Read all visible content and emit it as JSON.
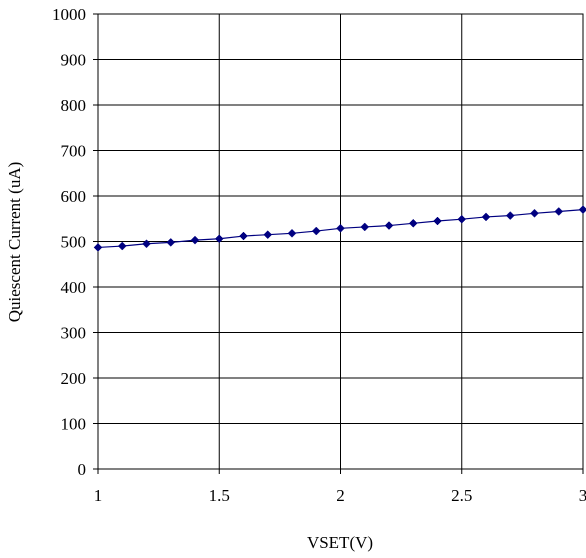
{
  "chart_data": {
    "type": "line",
    "title": "",
    "xlabel": "VSET(V)",
    "ylabel": "Quiescent Current (uA)",
    "xlim": [
      1,
      3
    ],
    "ylim": [
      0,
      1000
    ],
    "x_ticks": [
      "1",
      "1.5",
      "2",
      "2.5",
      "3"
    ],
    "y_ticks": [
      "0",
      "100",
      "200",
      "300",
      "400",
      "500",
      "600",
      "700",
      "800",
      "900",
      "1000"
    ],
    "grid": true,
    "legend": "none",
    "series": [
      {
        "color": "#000080",
        "marker": "diamond",
        "x": [
          1.0,
          1.1,
          1.2,
          1.3,
          1.4,
          1.5,
          1.6,
          1.7,
          1.8,
          1.9,
          2.0,
          2.1,
          2.2,
          2.3,
          2.4,
          2.5,
          2.6,
          2.7,
          2.8,
          2.9,
          3.0
        ],
        "y": [
          487,
          490,
          495,
          498,
          503,
          506,
          512,
          515,
          518,
          523,
          529,
          532,
          535,
          540,
          545,
          549,
          554,
          557,
          562,
          566,
          570
        ]
      }
    ]
  }
}
